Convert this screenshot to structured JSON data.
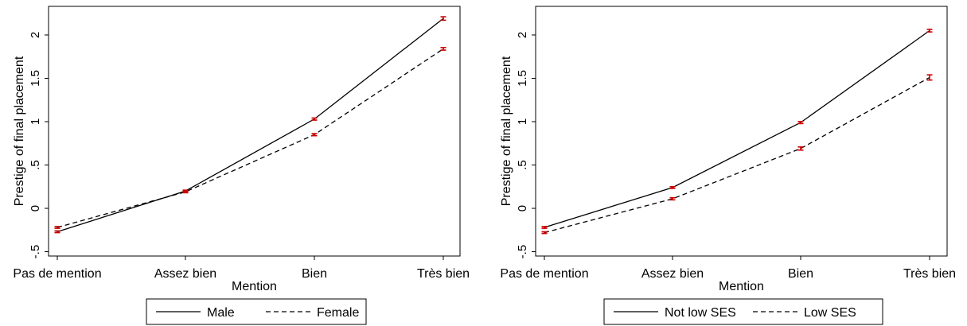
{
  "chart_data": [
    {
      "type": "line",
      "title": "",
      "xlabel": "Mention",
      "ylabel": "Prestige of final placement",
      "categories": [
        "Pas de mention",
        "Assez bien",
        "Bien",
        "Très bien"
      ],
      "yticks": [
        "-.5",
        "0",
        ".5",
        "1",
        "1.5",
        "2"
      ],
      "ylim": [
        -0.55,
        2.33
      ],
      "grid": false,
      "legend_position": "bottom",
      "errorbar_color": "#cc0000",
      "series": [
        {
          "name": "Male",
          "style": "solid",
          "color": "#000000",
          "values": [
            -0.27,
            0.2,
            1.03,
            2.19
          ],
          "ci": [
            0.01,
            0.01,
            0.012,
            0.02
          ]
        },
        {
          "name": "Female",
          "style": "dashed",
          "color": "#000000",
          "values": [
            -0.22,
            0.19,
            0.85,
            1.84
          ],
          "ci": [
            0.01,
            0.01,
            0.012,
            0.015
          ]
        }
      ]
    },
    {
      "type": "line",
      "title": "",
      "xlabel": "Mention",
      "ylabel": "Prestige of final placement",
      "categories": [
        "Pas de mention",
        "Assez bien",
        "Bien",
        "Très bien"
      ],
      "yticks": [
        "-.5",
        "0",
        ".5",
        "1",
        "1.5",
        "2"
      ],
      "ylim": [
        -0.55,
        2.33
      ],
      "grid": false,
      "legend_position": "bottom",
      "errorbar_color": "#cc0000",
      "series": [
        {
          "name": "Not low SES",
          "style": "solid",
          "color": "#000000",
          "values": [
            -0.22,
            0.24,
            0.99,
            2.05
          ],
          "ci": [
            0.01,
            0.01,
            0.012,
            0.015
          ]
        },
        {
          "name": "Low SES",
          "style": "dashed",
          "color": "#000000",
          "values": [
            -0.28,
            0.11,
            0.69,
            1.51
          ],
          "ci": [
            0.01,
            0.012,
            0.018,
            0.03
          ]
        }
      ]
    }
  ]
}
